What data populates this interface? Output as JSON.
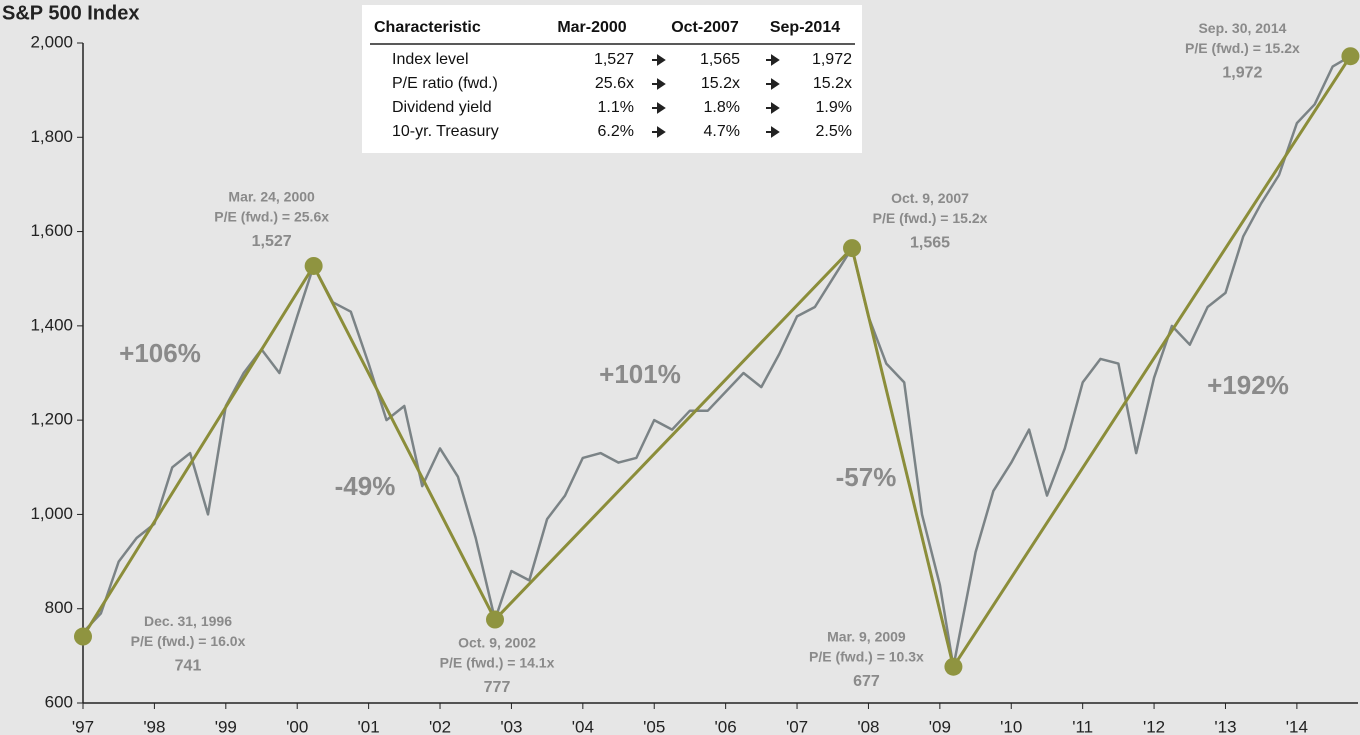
{
  "chart_data": {
    "type": "line",
    "title": "S&P 500 Index",
    "xlim": [
      1997,
      2014.8
    ],
    "xticks": [
      {
        "value": 1997,
        "label": "'97"
      },
      {
        "value": 1998,
        "label": "'98"
      },
      {
        "value": 1999,
        "label": "'99"
      },
      {
        "value": 2000,
        "label": "'00"
      },
      {
        "value": 2001,
        "label": "'01"
      },
      {
        "value": 2002,
        "label": "'02"
      },
      {
        "value": 2003,
        "label": "'03"
      },
      {
        "value": 2004,
        "label": "'04"
      },
      {
        "value": 2005,
        "label": "'05"
      },
      {
        "value": 2006,
        "label": "'06"
      },
      {
        "value": 2007,
        "label": "'07"
      },
      {
        "value": 2008,
        "label": "'08"
      },
      {
        "value": 2009,
        "label": "'09"
      },
      {
        "value": 2010,
        "label": "'10"
      },
      {
        "value": 2011,
        "label": "'11"
      },
      {
        "value": 2012,
        "label": "'12"
      },
      {
        "value": 2013,
        "label": "'13"
      },
      {
        "value": 2014,
        "label": "'14"
      }
    ],
    "ylim": [
      600,
      2000
    ],
    "yticks": [
      600,
      800,
      {
        "value": 1000,
        "label": "1,000"
      },
      {
        "value": 1200,
        "label": "1,200"
      },
      {
        "value": 1400,
        "label": "1,400"
      },
      {
        "value": 1600,
        "label": "1,600"
      },
      {
        "value": 1800,
        "label": "1,800"
      },
      {
        "value": 2000,
        "label": "2,000"
      }
    ],
    "series": [
      {
        "color": "#7b8386",
        "x": [
          1997.0,
          1997.25,
          1997.5,
          1997.75,
          1998.0,
          1998.25,
          1998.5,
          1998.75,
          1999.0,
          1999.25,
          1999.5,
          1999.75,
          2000.0,
          2000.23,
          2000.5,
          2000.75,
          2001.0,
          2001.25,
          2001.5,
          2001.75,
          2002.0,
          2002.25,
          2002.5,
          2002.77,
          2003.0,
          2003.25,
          2003.5,
          2003.75,
          2004.0,
          2004.25,
          2004.5,
          2004.75,
          2005.0,
          2005.25,
          2005.5,
          2005.75,
          2006.0,
          2006.25,
          2006.5,
          2006.75,
          2007.0,
          2007.25,
          2007.5,
          2007.77,
          2008.0,
          2008.25,
          2008.5,
          2008.75,
          2009.0,
          2009.19,
          2009.5,
          2009.75,
          2010.0,
          2010.25,
          2010.5,
          2010.75,
          2011.0,
          2011.25,
          2011.5,
          2011.75,
          2012.0,
          2012.25,
          2012.5,
          2012.75,
          2013.0,
          2013.25,
          2013.5,
          2013.75,
          2014.0,
          2014.25,
          2014.5,
          2014.75
        ],
        "values": [
          750,
          790,
          900,
          950,
          980,
          1100,
          1130,
          1000,
          1230,
          1300,
          1350,
          1300,
          1420,
          1527,
          1450,
          1430,
          1320,
          1200,
          1230,
          1060,
          1140,
          1080,
          950,
          777,
          880,
          860,
          990,
          1040,
          1120,
          1130,
          1110,
          1120,
          1200,
          1180,
          1220,
          1220,
          1260,
          1300,
          1270,
          1340,
          1420,
          1440,
          1500,
          1565,
          1420,
          1320,
          1280,
          1000,
          850,
          677,
          920,
          1050,
          1110,
          1180,
          1040,
          1140,
          1280,
          1330,
          1320,
          1130,
          1290,
          1400,
          1360,
          1440,
          1470,
          1590,
          1660,
          1720,
          1830,
          1870,
          1950,
          1972
        ]
      },
      {
        "color": "#8b8d3a",
        "x": [
          1997.0,
          2000.23,
          2002.77,
          2007.77,
          2009.19,
          2014.75
        ],
        "values": [
          741,
          1527,
          777,
          1565,
          677,
          1972
        ],
        "value_labels": [
          "741",
          "1,527",
          "777",
          "1,565",
          "677",
          "1,972"
        ],
        "dates": [
          "Dec. 31, 1996",
          "Mar. 24, 2000",
          "Oct. 9, 2002",
          "Oct. 9, 2007",
          "Mar. 9, 2009",
          "Sep. 30, 2014"
        ],
        "pe": [
          "P/E (fwd.) = 16.0x",
          "P/E (fwd.) = 25.6x",
          "P/E (fwd.) = 14.1x",
          "P/E (fwd.) = 15.2x",
          "P/E (fwd.) = 10.3x",
          "P/E (fwd.) = 15.2x"
        ]
      }
    ],
    "change_labels": [
      "+106%",
      "-49%",
      "+101%",
      "-57%",
      "+192%"
    ],
    "table": {
      "columns": [
        "Characteristic",
        "Mar-2000",
        "Oct-2007",
        "Sep-2014"
      ],
      "rows": [
        [
          "Index level",
          "1,527",
          "1,565",
          "1,972"
        ],
        [
          "P/E ratio (fwd.)",
          "25.6x",
          "15.2x",
          "15.2x"
        ],
        [
          "Dividend yield",
          "1.1%",
          "1.8%",
          "1.9%"
        ],
        [
          "10-yr. Treasury",
          "6.2%",
          "4.7%",
          "2.5%"
        ]
      ]
    }
  }
}
